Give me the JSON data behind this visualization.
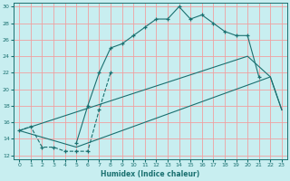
{
  "xlabel": "Humidex (Indice chaleur)",
  "bg_color": "#c8eef0",
  "grid_color": "#f0a0a0",
  "line_color": "#1a7070",
  "xlim": [
    -0.5,
    23.5
  ],
  "ylim": [
    11.5,
    30.5
  ],
  "xticks": [
    0,
    1,
    2,
    3,
    4,
    5,
    6,
    7,
    8,
    9,
    10,
    11,
    12,
    13,
    14,
    15,
    16,
    17,
    18,
    19,
    20,
    21,
    22,
    23
  ],
  "yticks": [
    12,
    14,
    16,
    18,
    20,
    22,
    24,
    26,
    28,
    30
  ],
  "line1_x": [
    0,
    1,
    2,
    3,
    4,
    5,
    6,
    7,
    8
  ],
  "line1_y": [
    15,
    15.5,
    13,
    13,
    12.5,
    12.5,
    12.5,
    17.5,
    22
  ],
  "line2_x": [
    5,
    6,
    7,
    8,
    9,
    10,
    11,
    12,
    13,
    14,
    15,
    16,
    17,
    18,
    19,
    20,
    21
  ],
  "line2_y": [
    13.5,
    18,
    22,
    25,
    25.5,
    26.5,
    27.5,
    28.5,
    28.5,
    30,
    28.5,
    29,
    28,
    27,
    26.5,
    26.5,
    21.5
  ],
  "line3_x": [
    0,
    5,
    6,
    7,
    8,
    9,
    10,
    11,
    12,
    13,
    14,
    15,
    16,
    17,
    18,
    22,
    23
  ],
  "line3_y": [
    15,
    13,
    13.5,
    14,
    14.5,
    15,
    15.5,
    16,
    16.5,
    17,
    17.5,
    18,
    18.5,
    19,
    19.5,
    21.5,
    17.5
  ],
  "line4_x": [
    0,
    20,
    22,
    23
  ],
  "line4_y": [
    15,
    24,
    21.5,
    17.5
  ]
}
